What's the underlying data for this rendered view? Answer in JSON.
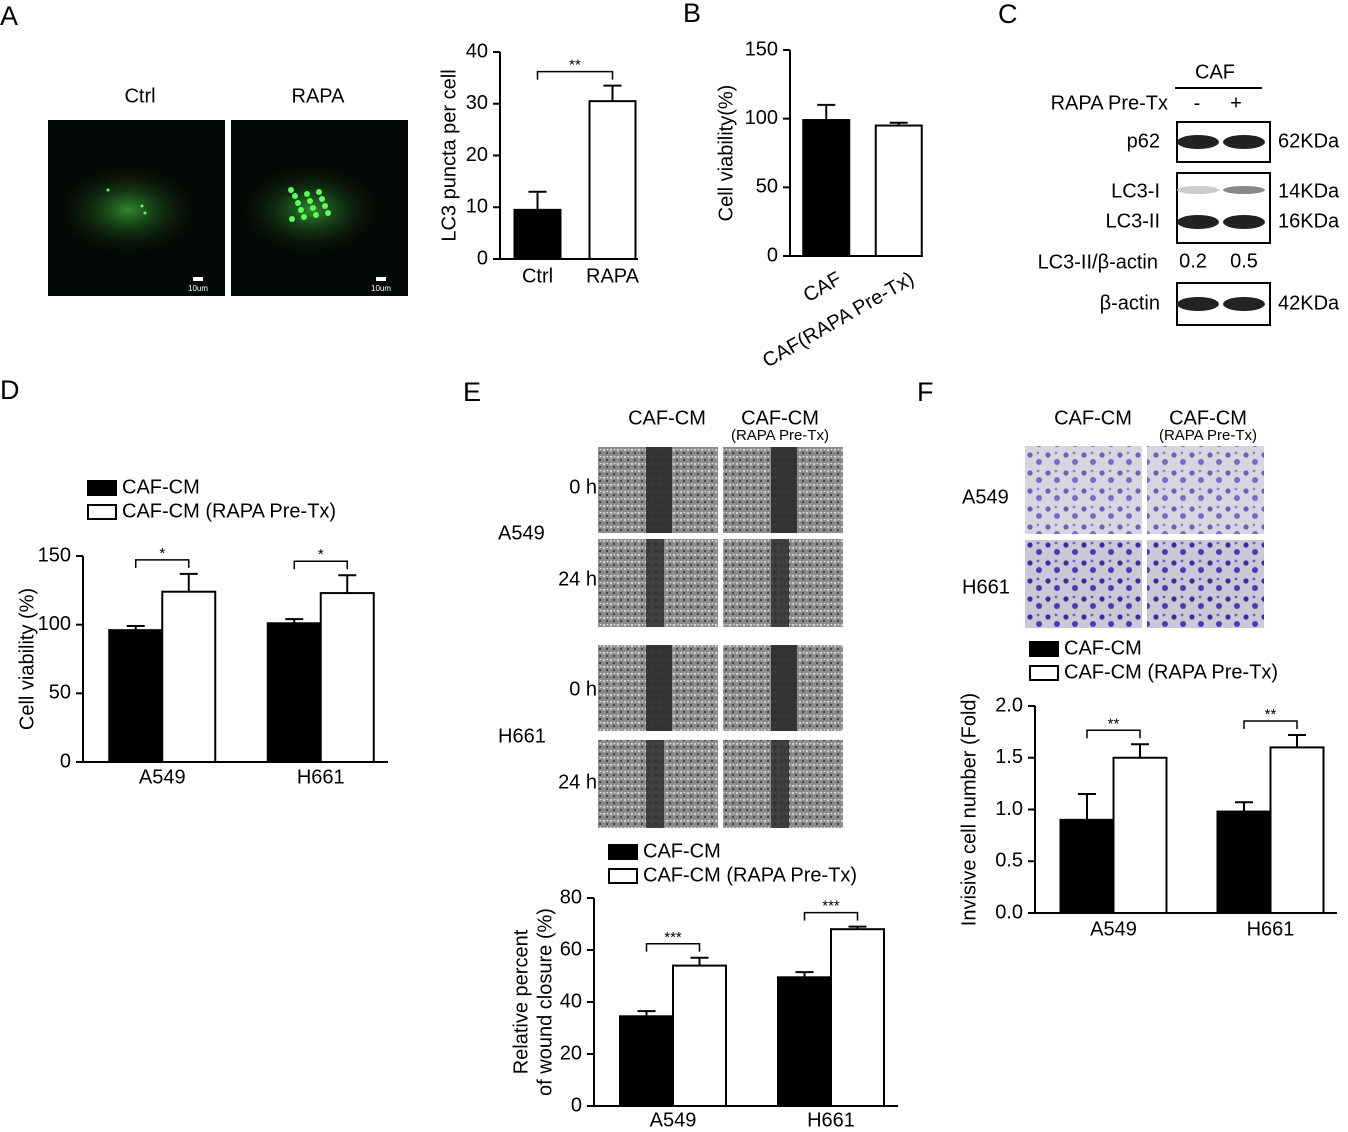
{
  "panel_labels": [
    "A",
    "B",
    "C",
    "D",
    "E",
    "F"
  ],
  "panel_a": {
    "images": [
      "Ctrl",
      "RAPA"
    ],
    "scale_bar": "10um"
  },
  "panel_c": {
    "group": "CAF",
    "treatment": "RAPA Pre-Tx",
    "lanes": [
      "-",
      "+"
    ],
    "blots": [
      {
        "labels": [
          "p62"
        ],
        "sizes": [
          "62KDa"
        ]
      },
      {
        "labels": [
          "LC3-I",
          "LC3-II"
        ],
        "sizes": [
          "14KDa",
          "16KDa"
        ]
      },
      {
        "labels": [
          "β-actin"
        ],
        "sizes": [
          "42KDa"
        ]
      }
    ],
    "ratio": {
      "label": "LC3-II/β-actin",
      "values": [
        "0.2",
        "0.5"
      ]
    }
  },
  "panel_e": {
    "columns": [
      "CAF-CM",
      "CAF-CM"
    ],
    "column_note": "(RAPA  Pre-Tx)",
    "rows": [
      {
        "cell": "A549",
        "times": [
          "0 h",
          "24 h"
        ]
      },
      {
        "cell": "H661",
        "times": [
          "0 h",
          "24 h"
        ]
      }
    ]
  },
  "panel_f": {
    "columns": [
      "CAF-CM",
      "CAF-CM"
    ],
    "column_note": "(RAPA  Pre-Tx)",
    "rows": [
      "A549",
      "H661"
    ]
  },
  "chart_data": [
    {
      "type": "bar",
      "ylabel": "LC3 puncta per cell",
      "categories": [
        "Ctrl",
        "RAPA"
      ],
      "values": [
        9.5,
        30.5
      ],
      "errors": [
        3.5,
        3
      ],
      "colors": [
        "#000000",
        "#ffffff"
      ],
      "annotation": "**",
      "ylim": [
        0,
        40
      ],
      "yticks": [
        0,
        10,
        20,
        30,
        40
      ]
    },
    {
      "type": "bar",
      "ylabel": "Cell viability(%)",
      "categories": [
        "CAF",
        "CAF(RAPA Pre-Tx)"
      ],
      "values": [
        99,
        95
      ],
      "errors": [
        11,
        2
      ],
      "colors": [
        "#000000",
        "#ffffff"
      ],
      "ylim": [
        0,
        150
      ],
      "yticks": [
        0,
        50,
        100,
        150
      ]
    },
    {
      "type": "grouped-bar",
      "ylabel": "Cell viability (%)",
      "categories": [
        "A549",
        "H661"
      ],
      "series": [
        {
          "name": "CAF-CM",
          "color": "#000000",
          "values": [
            96,
            101
          ],
          "errors": [
            3,
            3
          ]
        },
        {
          "name": "CAF-CM (RAPA Pre-Tx)",
          "color": "#ffffff",
          "values": [
            124,
            123
          ],
          "errors": [
            13,
            13
          ]
        }
      ],
      "annotations": [
        "*",
        "*"
      ],
      "legend": "top",
      "ylim": [
        0,
        150
      ],
      "yticks": [
        0,
        50,
        100,
        150
      ]
    },
    {
      "type": "grouped-bar",
      "ylabel": [
        "Relative  percent",
        "of wound closure (%)"
      ],
      "categories": [
        "A549",
        "H661"
      ],
      "series": [
        {
          "name": "CAF-CM",
          "color": "#000000",
          "values": [
            34.5,
            49.5
          ],
          "errors": [
            2,
            2
          ]
        },
        {
          "name": "CAF-CM (RAPA Pre-Tx)",
          "color": "#ffffff",
          "values": [
            54,
            68
          ],
          "errors": [
            3,
            1
          ]
        }
      ],
      "annotations": [
        "***",
        "***"
      ],
      "legend": "top",
      "ylim": [
        0,
        80
      ],
      "yticks": [
        0,
        20,
        40,
        60,
        80
      ]
    },
    {
      "type": "grouped-bar",
      "ylabel": "Invisive cell number (Fold)",
      "categories": [
        "A549",
        "H661"
      ],
      "series": [
        {
          "name": "CAF-CM",
          "color": "#000000",
          "values": [
            0.9,
            0.98
          ],
          "errors": [
            0.25,
            0.09
          ]
        },
        {
          "name": "CAF-CM (RAPA Pre-Tx)",
          "color": "#ffffff",
          "values": [
            1.5,
            1.6
          ],
          "errors": [
            0.13,
            0.12
          ]
        }
      ],
      "annotations": [
        "**",
        "**"
      ],
      "legend": "top",
      "ylim": [
        0,
        2
      ],
      "yticks": [
        {
          "value": 0,
          "label": "0.0"
        },
        0.5,
        {
          "value": 1,
          "label": "1.0"
        },
        1.5,
        {
          "value": 2,
          "label": "2.0"
        }
      ]
    }
  ]
}
